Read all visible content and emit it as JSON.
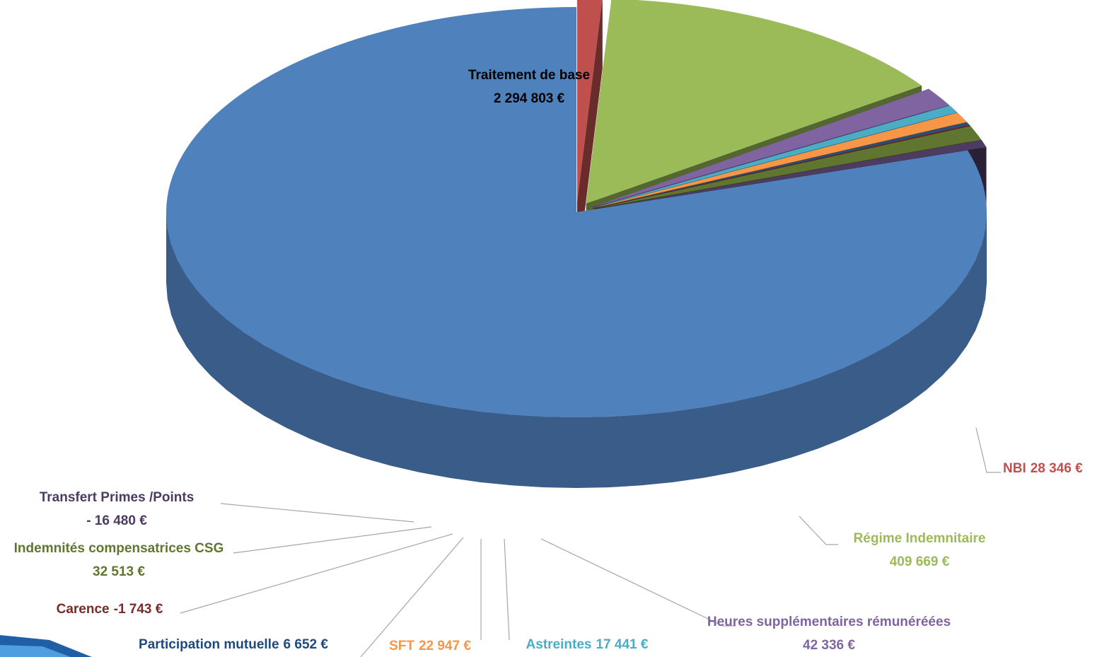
{
  "chart_data": {
    "type": "pie3d",
    "categories": [
      "Traitement de base",
      "NBI",
      "Régime Indemnitaire",
      "Heures supplémentaires rémunéréées",
      "Astreintes",
      "SFT",
      "Participation mutuelle",
      "Carence",
      "Indemnités compensatrices CSG",
      "Transfert Primes /Points"
    ],
    "values": [
      2294803,
      28346,
      409669,
      42336,
      17441,
      22947,
      6652,
      -1743,
      32513,
      -16480
    ],
    "value_labels": [
      "2 294 803 €",
      "28 346 €",
      "409 669 €",
      "42 336 €",
      "17 441 €",
      "22 947 €",
      "6 652 €",
      "-1 743 €",
      "32 513 €",
      "- 16 480 €"
    ],
    "colors": [
      "#4f81bd",
      "#c0504d",
      "#9bbb59",
      "#8064a2",
      "#4bacc6",
      "#f79646",
      "#2c4d75",
      "#772c2a",
      "#5f7530",
      "#4d3b62"
    ],
    "label_colors": [
      "#000000",
      "#c0504d",
      "#9bbb59",
      "#8064a2",
      "#4bacc6",
      "#f79646",
      "#1f497d",
      "#772c2a",
      "#5f7530",
      "#4d3b62"
    ]
  }
}
